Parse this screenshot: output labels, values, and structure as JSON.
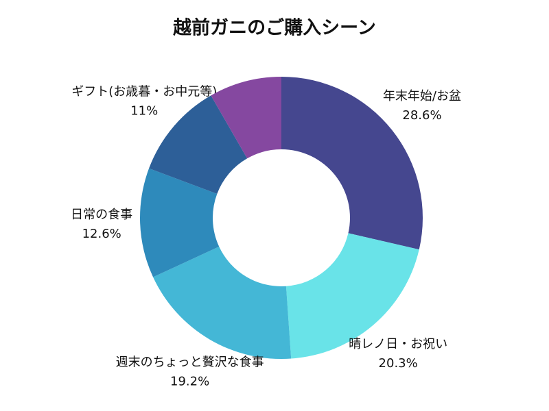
{
  "chart_data": {
    "type": "donut",
    "title": "越前ガニのご購入シーン",
    "categories": [
      "年末年始/お盆",
      "晴レノ日・お祝い",
      "週末のちょっと贅沢な食事",
      "日常の食事",
      "ギフト(お歳暮・お中元等)",
      null
    ],
    "values": [
      28.6,
      20.3,
      19.2,
      12.6,
      11,
      8.3
    ],
    "value_labels": [
      "28.6%",
      "20.3%",
      "19.2%",
      "12.6%",
      "11%",
      null
    ],
    "colors": [
      "#45478f",
      "#69e3e8",
      "#44b7d6",
      "#2e8abb",
      "#2d5f98",
      "#8548a0"
    ]
  }
}
